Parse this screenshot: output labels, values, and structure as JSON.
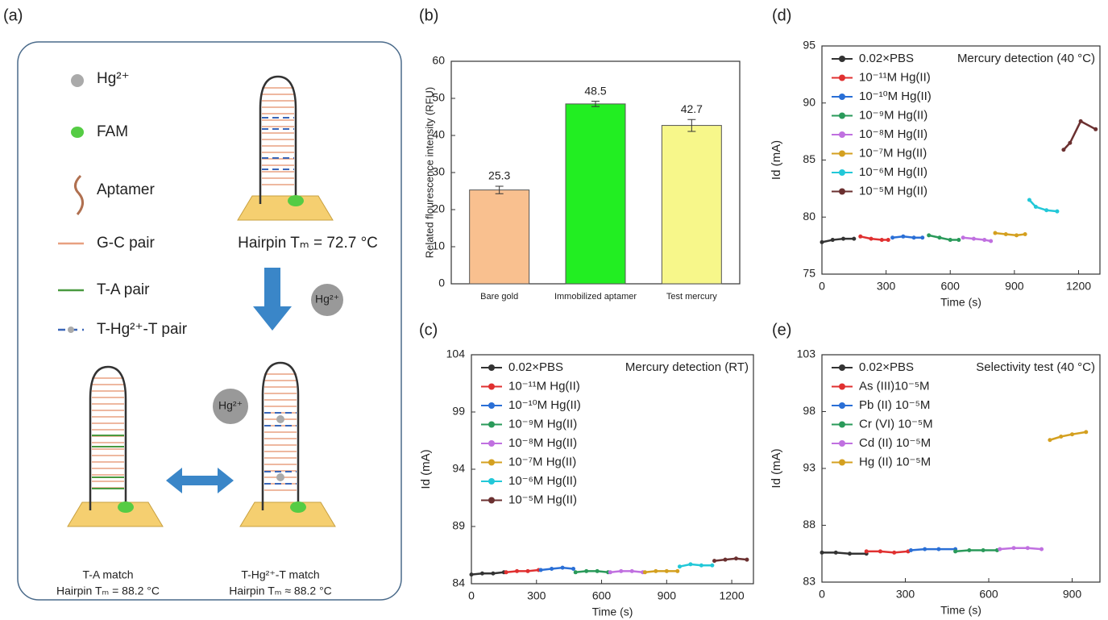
{
  "diagram": {
    "label": "(a)",
    "legend": [
      "Hg²⁺",
      "FAM",
      "Aptamer",
      "G-C pair",
      "T-A pair",
      "T-Hg²⁺-T pair"
    ],
    "hairpin_label": "Hairpin Tₘ = 72.7 °C",
    "arrow_label": "Hg²⁺",
    "ion_label": "Hg²⁺",
    "left_title": "T-A match",
    "left_tm": "Hairpin Tₘ = 88.2 °C",
    "right_title": "T-Hg²⁺-T match",
    "right_tm": "Hairpin Tₘ ≈ 88.2 °C"
  },
  "chart_data": [
    {
      "type": "bar",
      "label": "(b)",
      "y_label": "Related flourescence intensity (RFU)",
      "categories": [
        "Bare gold",
        "Immobilized aptamer",
        "Test mercury"
      ],
      "values": [
        25.3,
        48.5,
        42.7
      ],
      "errors": [
        1.0,
        0.7,
        1.6
      ],
      "colors": [
        "#f9c08f",
        "#22ee22",
        "#f7f78a"
      ],
      "ylim": [
        0,
        60
      ],
      "yticks": [
        0,
        10,
        20,
        30,
        40,
        50,
        60
      ]
    },
    {
      "type": "line",
      "label": "(c)",
      "annotation": "Mercury detection (RT)",
      "x_label": "Time (s)",
      "y_label": "Id (mA)",
      "xlim": [
        0,
        1300
      ],
      "xticks": [
        0,
        300,
        600,
        900,
        1200
      ],
      "ylim": [
        84,
        104
      ],
      "yticks": [
        84,
        89,
        94,
        99,
        104
      ],
      "series": [
        {
          "name": "0.02×PBS",
          "color": "#333333",
          "x": [
            0,
            50,
            100,
            150
          ],
          "values": [
            84.8,
            84.9,
            84.9,
            85.0
          ]
        },
        {
          "name": "10⁻¹¹M Hg(II)",
          "color": "#e03030",
          "x": [
            160,
            210,
            260,
            310
          ],
          "values": [
            85.0,
            85.1,
            85.1,
            85.2
          ]
        },
        {
          "name": "10⁻¹⁰M Hg(II)",
          "color": "#2a6fd6",
          "x": [
            320,
            370,
            420,
            470
          ],
          "values": [
            85.2,
            85.3,
            85.4,
            85.3
          ]
        },
        {
          "name": "10⁻⁹M Hg(II)",
          "color": "#2a9a5a",
          "x": [
            480,
            530,
            580,
            630
          ],
          "values": [
            85.0,
            85.1,
            85.1,
            85.0
          ]
        },
        {
          "name": "10⁻⁸M Hg(II)",
          "color": "#c070e0",
          "x": [
            640,
            690,
            740,
            790
          ],
          "values": [
            85.0,
            85.1,
            85.1,
            85.0
          ]
        },
        {
          "name": "10⁻⁷M Hg(II)",
          "color": "#d4a020",
          "x": [
            800,
            850,
            900,
            950
          ],
          "values": [
            85.0,
            85.1,
            85.1,
            85.1
          ]
        },
        {
          "name": "10⁻⁶M Hg(II)",
          "color": "#22c8d8",
          "x": [
            960,
            1010,
            1060,
            1110
          ],
          "values": [
            85.5,
            85.7,
            85.6,
            85.6
          ]
        },
        {
          "name": "10⁻⁵M Hg(II)",
          "color": "#6b3030",
          "x": [
            1120,
            1170,
            1220,
            1270
          ],
          "values": [
            86.0,
            86.1,
            86.2,
            86.1
          ]
        }
      ]
    },
    {
      "type": "line",
      "label": "(d)",
      "annotation": "Mercury detection (40 °C)",
      "x_label": "Time (s)",
      "y_label": "Id (mA)",
      "xlim": [
        0,
        1300
      ],
      "xticks": [
        0,
        300,
        600,
        900,
        1200
      ],
      "ylim": [
        75,
        95
      ],
      "yticks": [
        75,
        80,
        85,
        90,
        95
      ],
      "series": [
        {
          "name": "0.02×PBS",
          "color": "#333333",
          "x": [
            0,
            50,
            100,
            150
          ],
          "values": [
            77.8,
            78.0,
            78.1,
            78.1
          ]
        },
        {
          "name": "10⁻¹¹M Hg(II)",
          "color": "#e03030",
          "x": [
            180,
            230,
            280,
            310
          ],
          "values": [
            78.3,
            78.1,
            78.0,
            78.0
          ]
        },
        {
          "name": "10⁻¹⁰M Hg(II)",
          "color": "#2a6fd6",
          "x": [
            330,
            380,
            430,
            470
          ],
          "values": [
            78.2,
            78.3,
            78.2,
            78.2
          ]
        },
        {
          "name": "10⁻⁹M Hg(II)",
          "color": "#2a9a5a",
          "x": [
            500,
            550,
            600,
            640
          ],
          "values": [
            78.4,
            78.2,
            78.0,
            78.0
          ]
        },
        {
          "name": "10⁻⁸M Hg(II)",
          "color": "#c070e0",
          "x": [
            660,
            710,
            760,
            790
          ],
          "values": [
            78.2,
            78.1,
            78.0,
            77.9
          ]
        },
        {
          "name": "10⁻⁷M Hg(II)",
          "color": "#d4a020",
          "x": [
            810,
            860,
            910,
            950
          ],
          "values": [
            78.6,
            78.5,
            78.4,
            78.5
          ]
        },
        {
          "name": "10⁻⁶M Hg(II)",
          "color": "#22c8d8",
          "x": [
            970,
            1000,
            1050,
            1100
          ],
          "values": [
            81.5,
            80.9,
            80.6,
            80.5
          ]
        },
        {
          "name": "10⁻⁵M Hg(II)",
          "color": "#6b3030",
          "x": [
            1130,
            1160,
            1210,
            1280
          ],
          "values": [
            85.9,
            86.5,
            88.4,
            87.7
          ]
        }
      ]
    },
    {
      "type": "line",
      "label": "(e)",
      "annotation": "Selectivity test (40 °C)",
      "x_label": "Time (s)",
      "y_label": "Id (mA)",
      "xlim": [
        0,
        1000
      ],
      "xticks": [
        0,
        300,
        600,
        900
      ],
      "ylim": [
        83,
        103
      ],
      "yticks": [
        83,
        88,
        93,
        98,
        103
      ],
      "series": [
        {
          "name": "0.02×PBS",
          "color": "#333333",
          "x": [
            0,
            50,
            100,
            160
          ],
          "values": [
            85.6,
            85.6,
            85.5,
            85.5
          ]
        },
        {
          "name": "As (III)10⁻⁵M",
          "color": "#e03030",
          "x": [
            160,
            210,
            260,
            310
          ],
          "values": [
            85.7,
            85.7,
            85.6,
            85.7
          ]
        },
        {
          "name": "Pb (II) 10⁻⁵M",
          "color": "#2a6fd6",
          "x": [
            320,
            370,
            420,
            480
          ],
          "values": [
            85.8,
            85.9,
            85.9,
            85.9
          ]
        },
        {
          "name": "Cr (VI) 10⁻⁵M",
          "color": "#2a9a5a",
          "x": [
            480,
            530,
            580,
            630
          ],
          "values": [
            85.7,
            85.8,
            85.8,
            85.8
          ]
        },
        {
          "name": "Cd (II) 10⁻⁵M",
          "color": "#c070e0",
          "x": [
            640,
            690,
            740,
            790
          ],
          "values": [
            85.9,
            86.0,
            86.0,
            85.9
          ]
        },
        {
          "name": "Hg (II) 10⁻⁵M",
          "color": "#d4a020",
          "x": [
            820,
            860,
            900,
            950
          ],
          "values": [
            95.5,
            95.8,
            96.0,
            96.2
          ]
        }
      ]
    }
  ]
}
